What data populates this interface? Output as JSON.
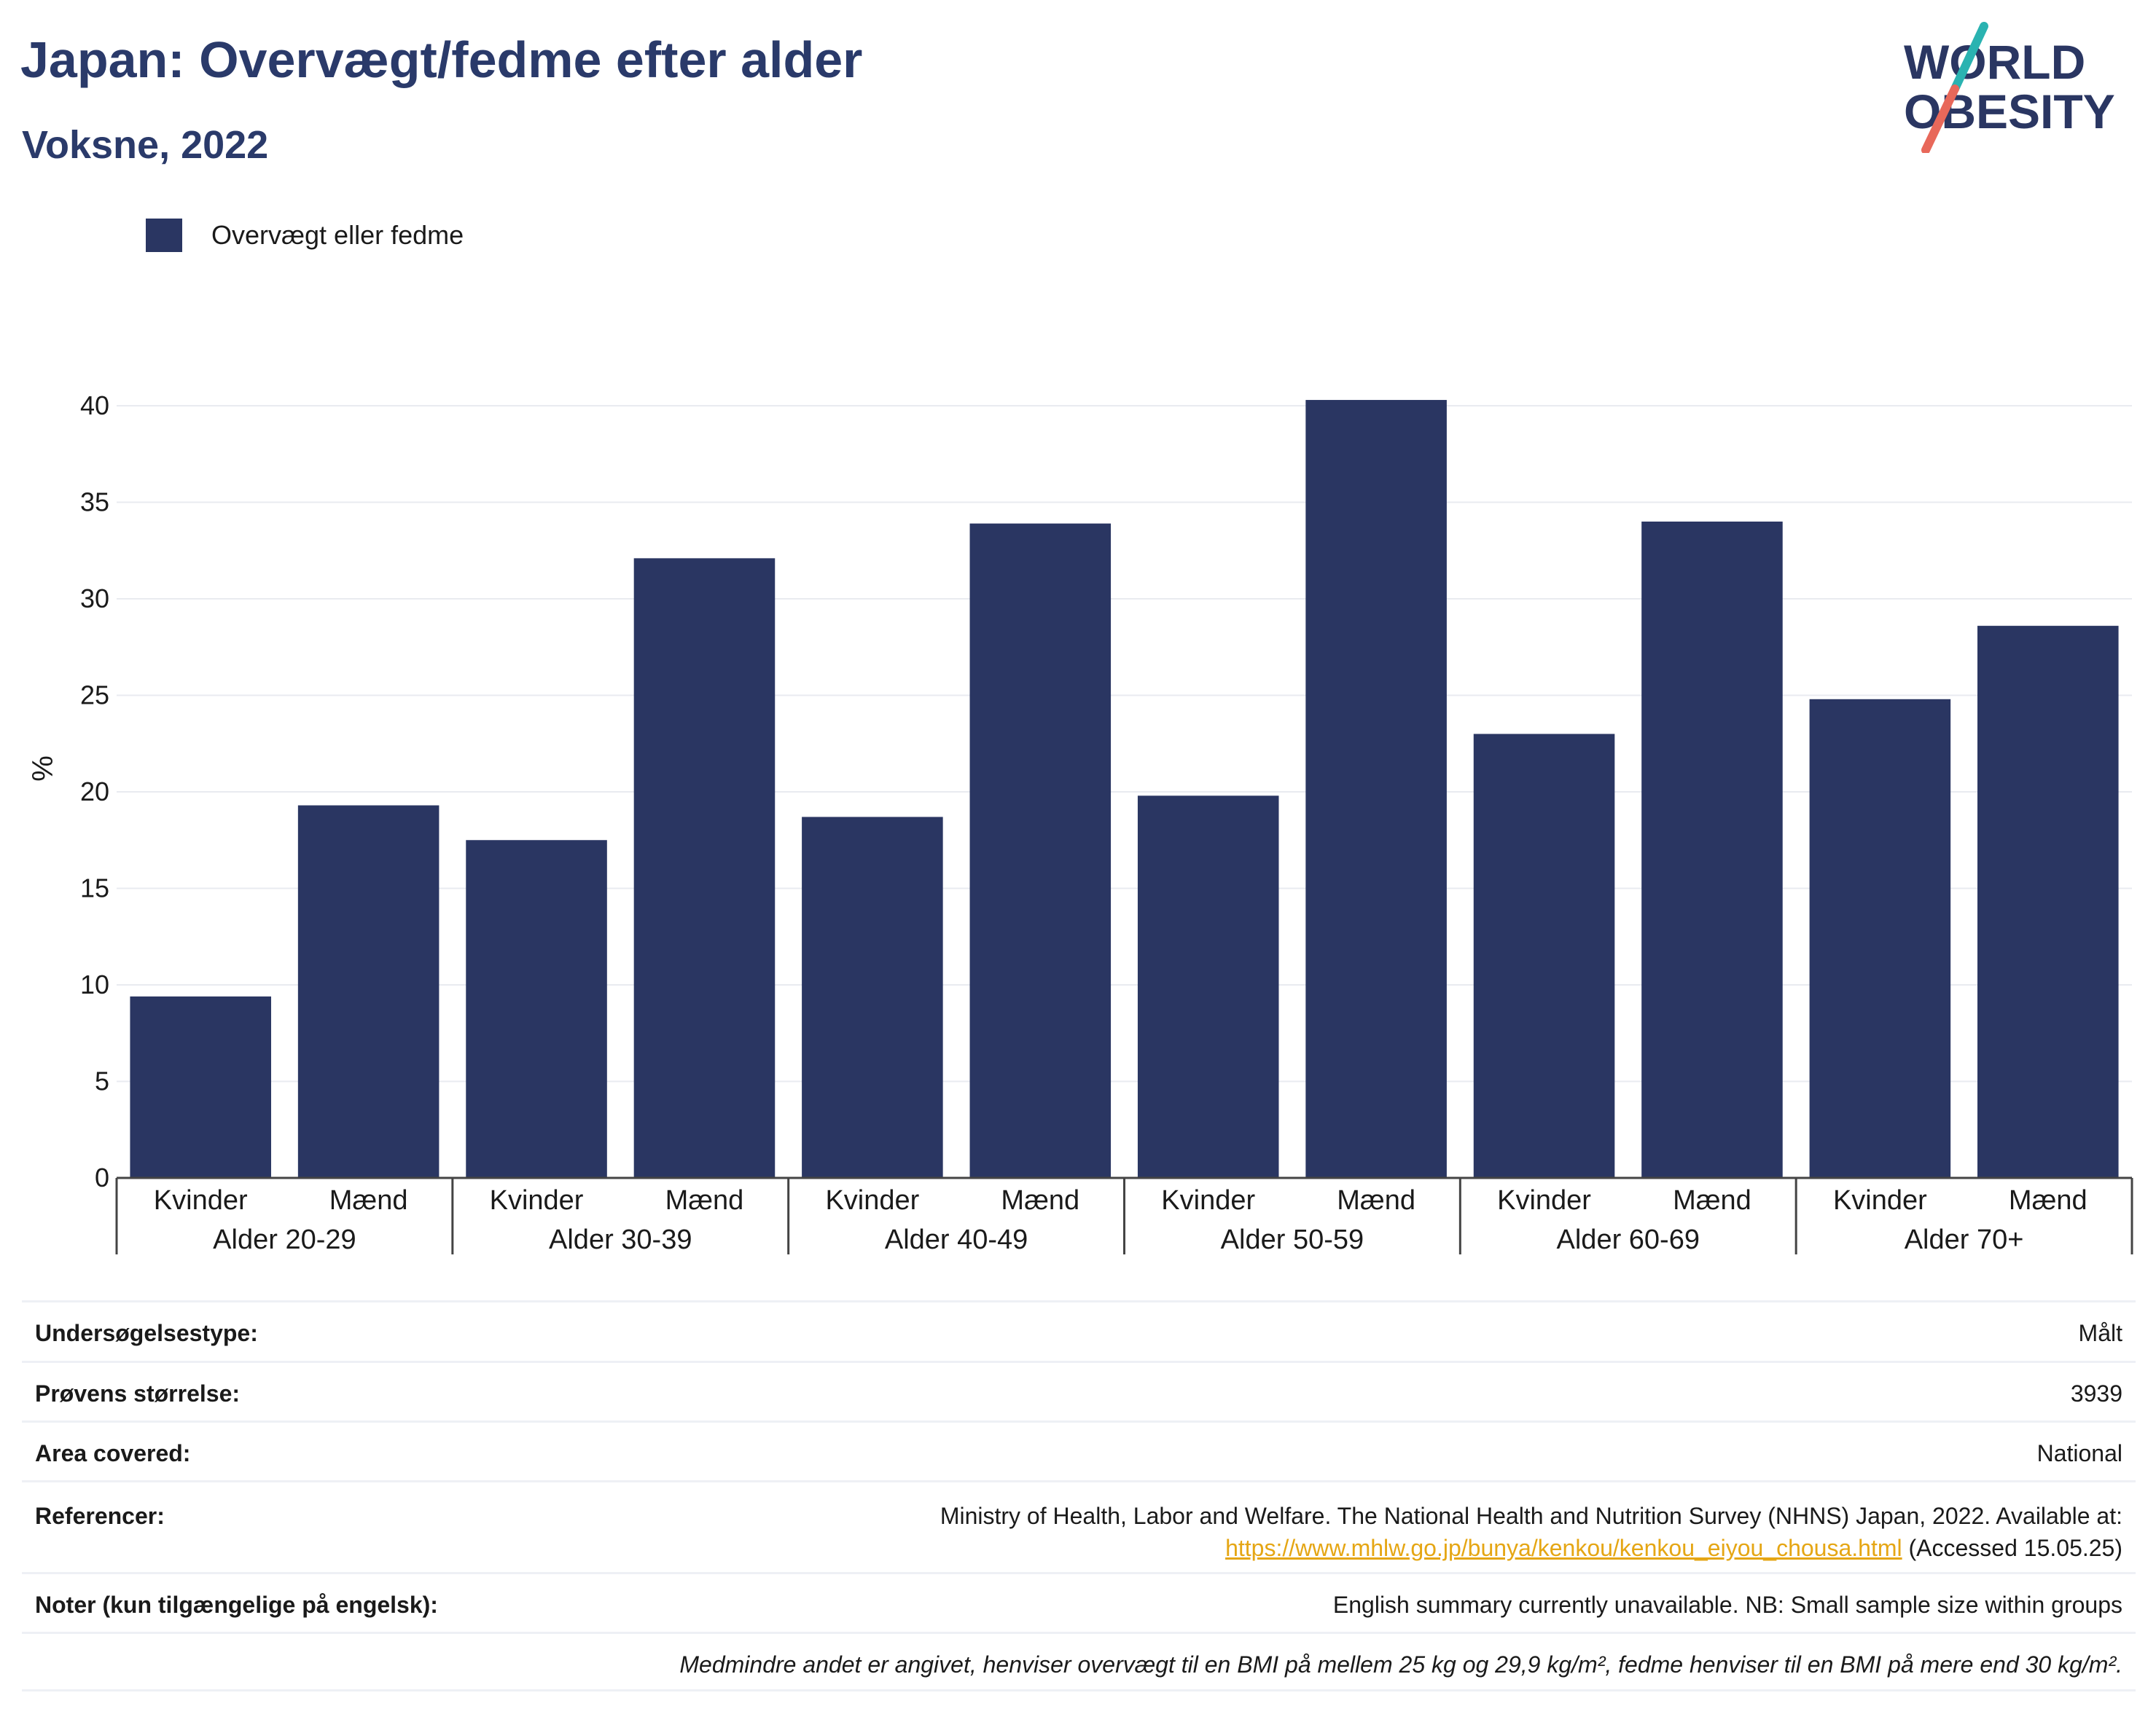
{
  "header": {
    "title": "Japan: Overvægt/fedme efter alder",
    "subtitle": "Voksne, 2022"
  },
  "logo": {
    "line1": "WORLD",
    "line2": "OBESITY",
    "text_color": "#2a3662",
    "accent_teal": "#2ab3b1",
    "accent_coral": "#e8685a"
  },
  "legend": {
    "label": "Overvægt eller fedme",
    "color": "#2a3662"
  },
  "chart_data": {
    "type": "bar",
    "ylabel": "%",
    "ylim": [
      0,
      40
    ],
    "yticks": [
      "0",
      "5",
      "10",
      "15",
      "20",
      "25",
      "30",
      "35",
      "40"
    ],
    "grid": true,
    "legend_position": "top-left",
    "groups": [
      "Alder 20-29",
      "Alder 30-39",
      "Alder 40-49",
      "Alder 50-59",
      "Alder 60-69",
      "Alder 70+"
    ],
    "categories": [
      "Kvinder",
      "Mænd",
      "Kvinder",
      "Mænd",
      "Kvinder",
      "Mænd",
      "Kvinder",
      "Mænd",
      "Kvinder",
      "Mænd",
      "Kvinder",
      "Mænd"
    ],
    "series": [
      {
        "name": "Overvægt eller fedme",
        "color": "#2a3662",
        "values": [
          9.4,
          19.3,
          17.5,
          32.1,
          18.7,
          33.9,
          19.8,
          40.3,
          23.0,
          34.0,
          24.8,
          28.6
        ]
      }
    ]
  },
  "info": {
    "survey_type": {
      "label": "Undersøgelsestype:",
      "value": "Målt"
    },
    "sample_size": {
      "label": "Prøvens størrelse:",
      "value": "3939"
    },
    "area": {
      "label": "Area covered:",
      "value": "National"
    },
    "references": {
      "label": "Referencer:",
      "text": "Ministry of Health, Labor and Welfare. The National Health and Nutrition Survey (NHNS) Japan, 2022. Available at:",
      "link": "https://www.mhlw.go.jp/bunya/kenkou/kenkou_eiyou_chousa.html",
      "accessed": "(Accessed 15.05.25)"
    },
    "notes": {
      "label": "Noter (kun tilgængelige på engelsk):",
      "value": "English summary currently unavailable. NB: Small sample size within groups"
    },
    "definition": "Medmindre andet er angivet, henviser overvægt til en BMI på mellem 25 kg og 29,9 kg/m², fedme henviser til en BMI på mere end 30 kg/m²."
  }
}
